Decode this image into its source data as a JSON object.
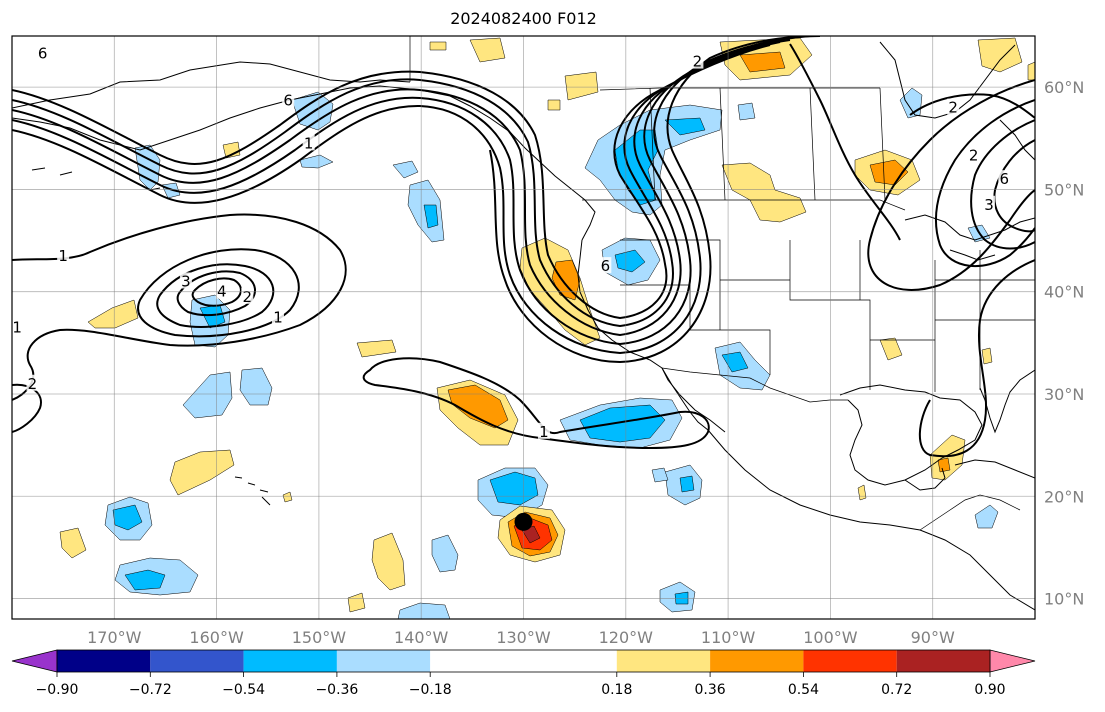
{
  "title": "2024082400 F012",
  "map": {
    "projection": "PlateCarree",
    "lon_range": [
      -180,
      -80
    ],
    "lat_range": [
      8,
      65
    ],
    "gridlines": true,
    "lon_ticks": [
      {
        "value": -170,
        "label": "170°W"
      },
      {
        "value": -160,
        "label": "160°W"
      },
      {
        "value": -150,
        "label": "150°W"
      },
      {
        "value": -140,
        "label": "140°W"
      },
      {
        "value": -130,
        "label": "130°W"
      },
      {
        "value": -120,
        "label": "120°W"
      },
      {
        "value": -110,
        "label": "110°W"
      },
      {
        "value": -100,
        "label": "100°W"
      },
      {
        "value": -90,
        "label": "90°W"
      }
    ],
    "lat_ticks": [
      {
        "value": 60,
        "label": "60°N"
      },
      {
        "value": 50,
        "label": "50°N"
      },
      {
        "value": 40,
        "label": "40°N"
      },
      {
        "value": 30,
        "label": "30°N"
      },
      {
        "value": 20,
        "label": "20°N"
      },
      {
        "value": 10,
        "label": "10°N"
      }
    ],
    "marker": {
      "lon": -130,
      "lat": 17.5,
      "color": "#000000"
    }
  },
  "contour_labels": [
    {
      "text": "1",
      "lon": -175,
      "lat": 43.5
    },
    {
      "text": "1",
      "lon": -154,
      "lat": 37.5
    },
    {
      "text": "1",
      "lon": -151,
      "lat": 54.5
    },
    {
      "text": "1",
      "lon": -128,
      "lat": 26.3
    },
    {
      "text": "2",
      "lon": -157,
      "lat": 39.5
    },
    {
      "text": "3",
      "lon": -163,
      "lat": 41
    },
    {
      "text": "4",
      "lon": -159.5,
      "lat": 40
    },
    {
      "text": "6",
      "lon": -177,
      "lat": 63.3
    },
    {
      "text": "6",
      "lon": -153,
      "lat": 58.7
    },
    {
      "text": "6",
      "lon": -122,
      "lat": 42.5
    },
    {
      "text": "2",
      "lon": -178,
      "lat": 31
    },
    {
      "text": "1",
      "lon": -179.5,
      "lat": 36.5
    },
    {
      "text": "2",
      "lon": -88,
      "lat": 58
    },
    {
      "text": "2",
      "lon": -86,
      "lat": 53.3
    },
    {
      "text": "6",
      "lon": -83,
      "lat": 51
    },
    {
      "text": "3",
      "lon": -84.5,
      "lat": 48.5
    },
    {
      "text": "2",
      "lon": -113,
      "lat": 62.5
    }
  ],
  "colorbar": {
    "levels": [
      -1.08,
      -0.9,
      -0.72,
      -0.54,
      -0.36,
      -0.18,
      0.18,
      0.36,
      0.54,
      0.72,
      0.9,
      1.08
    ],
    "colors": [
      "#9933cc",
      "#000088",
      "#3355cc",
      "#00bbff",
      "#aaddff",
      "#ffffff",
      "#ffe680",
      "#ff9900",
      "#ff3300",
      "#aa2222",
      "#ff88aa"
    ],
    "under_color": "#9933cc",
    "over_color": "#ff88aa",
    "extend": "both",
    "tick_values": [
      -0.9,
      -0.72,
      -0.54,
      -0.36,
      -0.18,
      0.18,
      0.36,
      0.54,
      0.72,
      0.9
    ],
    "tick_labels": [
      "−0.90",
      "−0.72",
      "−0.54",
      "−0.36",
      "−0.18",
      "0.18",
      "0.36",
      "0.54",
      "0.72",
      "0.90"
    ]
  },
  "shading": {
    "colors": {
      "light_blue": "#aaddff",
      "deep_sky": "#00bbff",
      "yellow": "#ffe680",
      "orange": "#ff9900",
      "red_orange": "#ff3300",
      "brown_red": "#aa2222"
    }
  }
}
